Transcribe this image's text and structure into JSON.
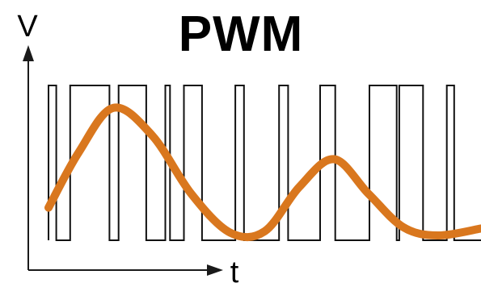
{
  "title": "PWM",
  "y_axis_label": "V",
  "x_axis_label": "t",
  "colors": {
    "pwm_signal": "#111111",
    "analog_wave": "#d9771e",
    "axis": "#1a1a1a",
    "text": "#000000",
    "background": "#ffffff"
  },
  "pwm_signal": {
    "levels": [
      "low",
      "high"
    ],
    "transitions": [
      0.018,
      0.05,
      0.141,
      0.162,
      0.226,
      0.27,
      0.281,
      0.313,
      0.355,
      0.432,
      0.452,
      0.533,
      0.554,
      0.628,
      0.663,
      0.742,
      0.805,
      0.811,
      0.866,
      0.921,
      0.938
    ],
    "start_level": "low"
  },
  "analog_wave": {
    "description_points_t": [
      0.0,
      0.07,
      0.15,
      0.24,
      0.33,
      0.42,
      0.5,
      0.58,
      0.66,
      0.74,
      0.82,
      0.9,
      1.0
    ],
    "description_points_v": [
      0.2,
      0.6,
      0.92,
      0.72,
      0.3,
      0.02,
      0.03,
      0.35,
      0.55,
      0.3,
      0.06,
      0.0,
      0.05
    ]
  }
}
